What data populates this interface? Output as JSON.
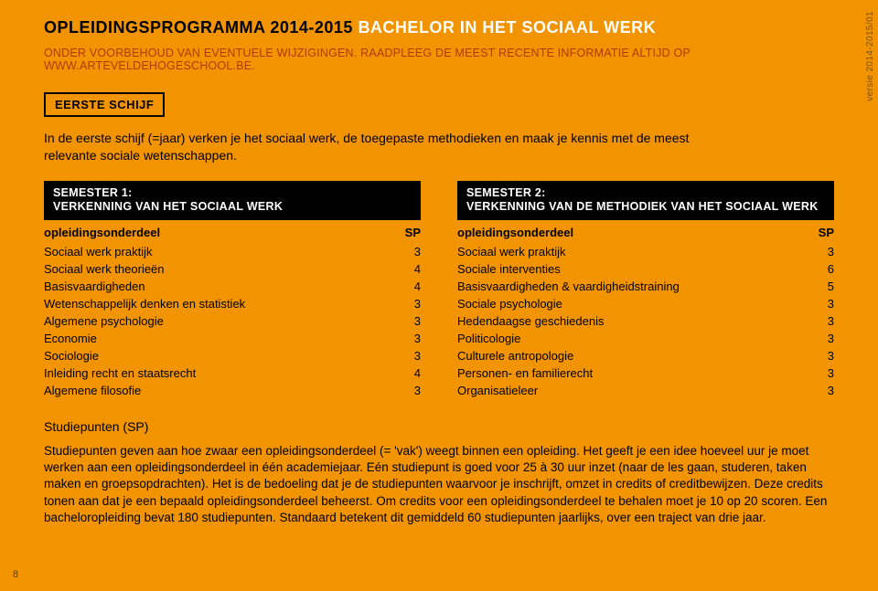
{
  "version_label": "versie 2014-2015/01",
  "page_number": "8",
  "title_part1": "OPLEIDINGSPROGRAMMA 2014-2015",
  "title_part2": "BACHELOR IN HET SOCIAAL WERK",
  "subtitle": "ONDER VOORBEHOUD VAN EVENTUELE WIJZIGINGEN. RAADPLEEG DE MEEST RECENTE INFORMATIE ALTIJD OP WWW.ARTEVELDEHOGESCHOOL.BE.",
  "schijf_badge": "EERSTE SCHIJF",
  "intro": "In de eerste schijf (=jaar) verken je het sociaal werk, de toegepaste methodieken en maak je kennis met de meest relevante sociale wetenschappen.",
  "col_onderdeel": "opleidingsonderdeel",
  "col_sp": "SP",
  "sem1": {
    "header_l1": "SEMESTER 1:",
    "header_l2": "VERKENNING VAN HET SOCIAAL WERK",
    "rows": [
      {
        "name": "Sociaal werk praktijk",
        "sp": "3"
      },
      {
        "name": "Sociaal werk theorieën",
        "sp": "4"
      },
      {
        "name": "Basisvaardigheden",
        "sp": "4"
      },
      {
        "name": "Wetenschappelijk denken en statistiek",
        "sp": "3"
      },
      {
        "name": "Algemene psychologie",
        "sp": "3"
      },
      {
        "name": "Economie",
        "sp": "3"
      },
      {
        "name": "Sociologie",
        "sp": "3"
      },
      {
        "name": "Inleiding recht en staatsrecht",
        "sp": "4"
      },
      {
        "name": "Algemene filosofie",
        "sp": "3"
      }
    ]
  },
  "sem2": {
    "header_l1": "SEMESTER 2:",
    "header_l2": "VERKENNING VAN DE METHODIEK  VAN HET SOCIAAL WERK",
    "rows": [
      {
        "name": "Sociaal werk praktijk",
        "sp": "3"
      },
      {
        "name": "Sociale interventies",
        "sp": "6"
      },
      {
        "name": "Basisvaardigheden & vaardigheidstraining",
        "sp": "5"
      },
      {
        "name": "Sociale psychologie",
        "sp": "3"
      },
      {
        "name": "Hedendaagse geschiedenis",
        "sp": "3"
      },
      {
        "name": "Politicologie",
        "sp": "3"
      },
      {
        "name": "Culturele antropologie",
        "sp": "3"
      },
      {
        "name": "Personen- en familierecht",
        "sp": "3"
      },
      {
        "name": "Organisatieleer",
        "sp": "3"
      }
    ]
  },
  "sp_title": "Studiepunten (SP)",
  "sp_body": "Studiepunten geven aan hoe zwaar een opleidingsonderdeel (= 'vak') weegt binnen een opleiding. Het geeft je een idee hoeveel uur je moet werken aan een opleidingsonderdeel in één academiejaar. Eén studiepunt is goed voor 25 à 30 uur inzet (naar de les gaan, studeren, taken maken en groepsopdrachten). Het is de bedoeling dat je de studiepunten waarvoor je inschrijft, omzet in credits of creditbewijzen. Deze credits tonen aan dat je een bepaald opleidingsonderdeel beheerst. Om credits voor een opleidingsonderdeel te behalen moet je 10 op 20 scoren. Een bacheloropleiding bevat 180 studiepunten. Standaard betekent dit gemiddeld 60 studiepunten jaarlijks, over een traject van drie jaar."
}
